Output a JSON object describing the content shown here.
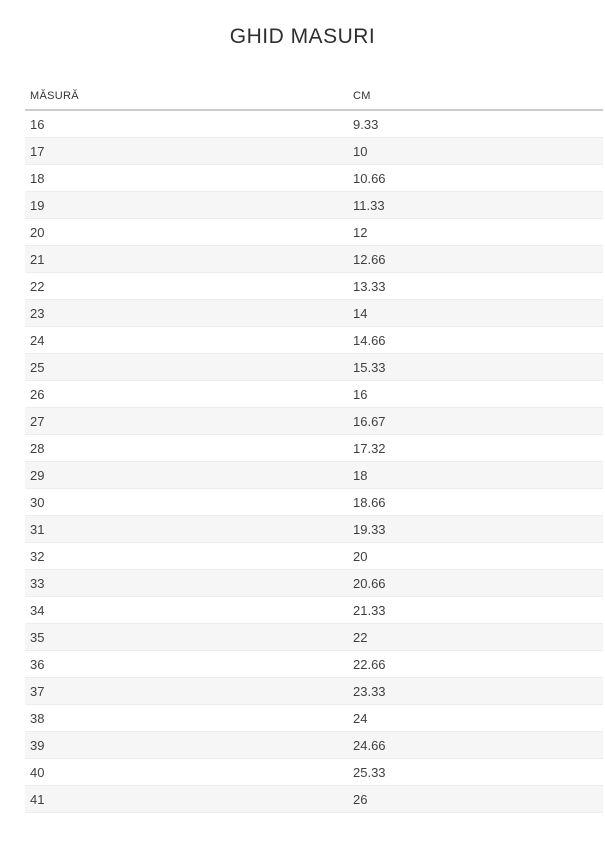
{
  "title": "GHID MASURI",
  "table": {
    "headers": [
      "MĂSURĂ",
      "CM"
    ],
    "rows": [
      {
        "size": "16",
        "cm": "9.33"
      },
      {
        "size": "17",
        "cm": "10"
      },
      {
        "size": "18",
        "cm": "10.66"
      },
      {
        "size": "19",
        "cm": "11.33"
      },
      {
        "size": "20",
        "cm": "12"
      },
      {
        "size": "21",
        "cm": "12.66"
      },
      {
        "size": "22",
        "cm": "13.33"
      },
      {
        "size": "23",
        "cm": "14"
      },
      {
        "size": "24",
        "cm": "14.66"
      },
      {
        "size": "25",
        "cm": "15.33"
      },
      {
        "size": "26",
        "cm": "16"
      },
      {
        "size": "27",
        "cm": "16.67"
      },
      {
        "size": "28",
        "cm": "17.32"
      },
      {
        "size": "29",
        "cm": "18"
      },
      {
        "size": "30",
        "cm": "18.66"
      },
      {
        "size": "31",
        "cm": "19.33"
      },
      {
        "size": "32",
        "cm": "20"
      },
      {
        "size": "33",
        "cm": "20.66"
      },
      {
        "size": "34",
        "cm": "21.33"
      },
      {
        "size": "35",
        "cm": "22"
      },
      {
        "size": "36",
        "cm": "22.66"
      },
      {
        "size": "37",
        "cm": "23.33"
      },
      {
        "size": "38",
        "cm": "24"
      },
      {
        "size": "39",
        "cm": "24.66"
      },
      {
        "size": "40",
        "cm": "25.33"
      },
      {
        "size": "41",
        "cm": "26"
      }
    ]
  },
  "colors": {
    "stripe": "#f6f6f6",
    "row_border": "#ededed",
    "header_border": "#cccccc",
    "text": "#3f3f3f",
    "title_text": "#2f2f2f"
  }
}
